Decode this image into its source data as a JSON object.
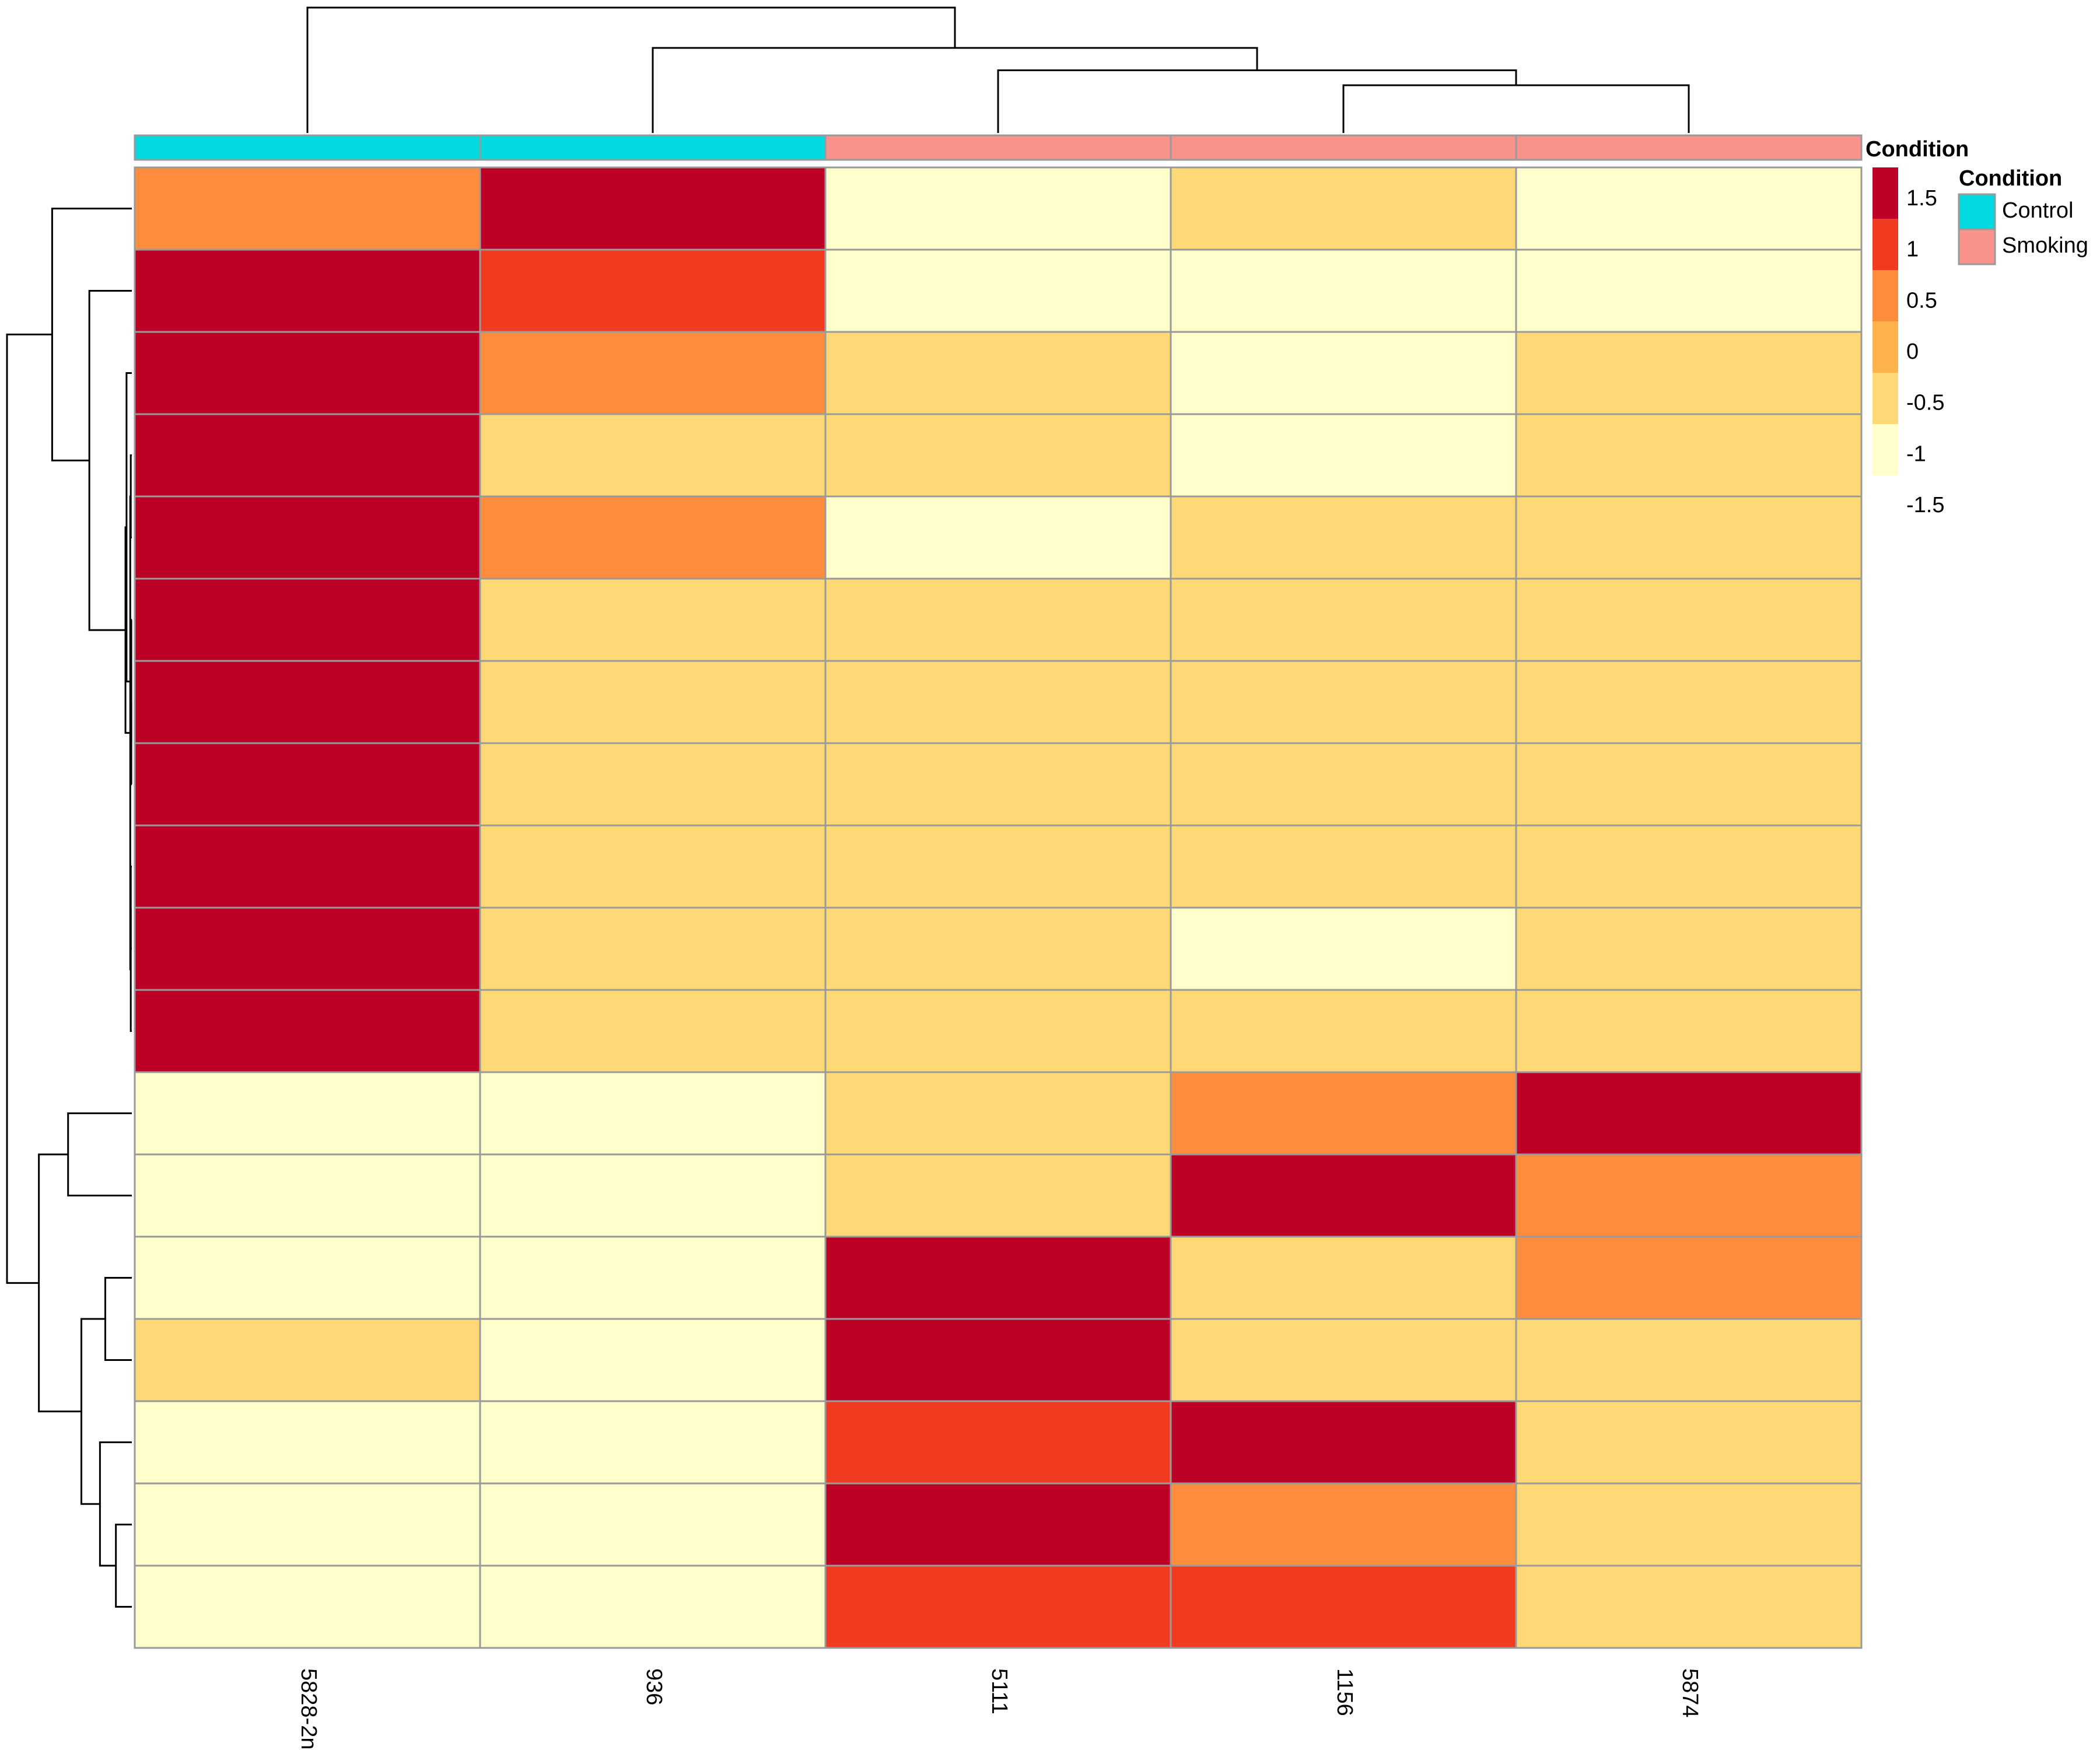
{
  "chart_data": {
    "type": "heatmap",
    "columns": [
      "5828-2n",
      "936",
      "5111",
      "1156",
      "5874"
    ],
    "column_condition": [
      "Control",
      "Control",
      "Smoking",
      "Smoking",
      "Smoking"
    ],
    "values": [
      [
        0.5,
        1.5,
        -1,
        -0.5,
        -1
      ],
      [
        1.5,
        1,
        -1,
        -1,
        -1
      ],
      [
        1.5,
        0.5,
        -0.5,
        -1,
        -0.5
      ],
      [
        1.5,
        -0.5,
        -0.5,
        -1,
        -0.5
      ],
      [
        1.5,
        0.5,
        -1,
        -0.5,
        -0.5
      ],
      [
        1.5,
        -0.5,
        -0.5,
        -0.5,
        -0.5
      ],
      [
        1.5,
        -0.5,
        -0.5,
        -0.5,
        -0.5
      ],
      [
        1.5,
        -0.5,
        -0.5,
        -0.5,
        -0.5
      ],
      [
        1.5,
        -0.5,
        -0.5,
        -0.5,
        -0.5
      ],
      [
        1.5,
        -0.5,
        -0.5,
        -1,
        -0.5
      ],
      [
        1.5,
        -0.5,
        -0.5,
        -0.5,
        -0.5
      ],
      [
        -1,
        -1,
        -0.5,
        0.5,
        1.5
      ],
      [
        -1,
        -1,
        -0.5,
        1.5,
        0.5
      ],
      [
        -1,
        -1,
        1.5,
        -0.5,
        0.5
      ],
      [
        -0.5,
        -1,
        1.5,
        -0.5,
        -0.5
      ],
      [
        -1,
        -1,
        1,
        1.5,
        -0.5
      ],
      [
        -1,
        -1,
        1.5,
        0.5,
        -0.5
      ],
      [
        -1,
        -1,
        1,
        1,
        -0.5
      ]
    ],
    "scale": {
      "title": "Condition",
      "breaks": [
        -1.5,
        -1,
        -0.5,
        0,
        0.5,
        1,
        1.5
      ],
      "tick_labels": [
        "1.5",
        "1",
        "0.5",
        "0",
        "-0.5",
        "-1",
        "-1.5"
      ],
      "colors": [
        "#FFFFCC",
        "#FED976",
        "#FEB24C",
        "#FD8D3C",
        "#F03B20",
        "#BD0026"
      ]
    },
    "annotation_legend": {
      "title": "Condition",
      "items": [
        {
          "label": "Control",
          "color": "#00D9E0"
        },
        {
          "label": "Smoking",
          "color": "#F8928A"
        }
      ]
    },
    "grid": true
  }
}
